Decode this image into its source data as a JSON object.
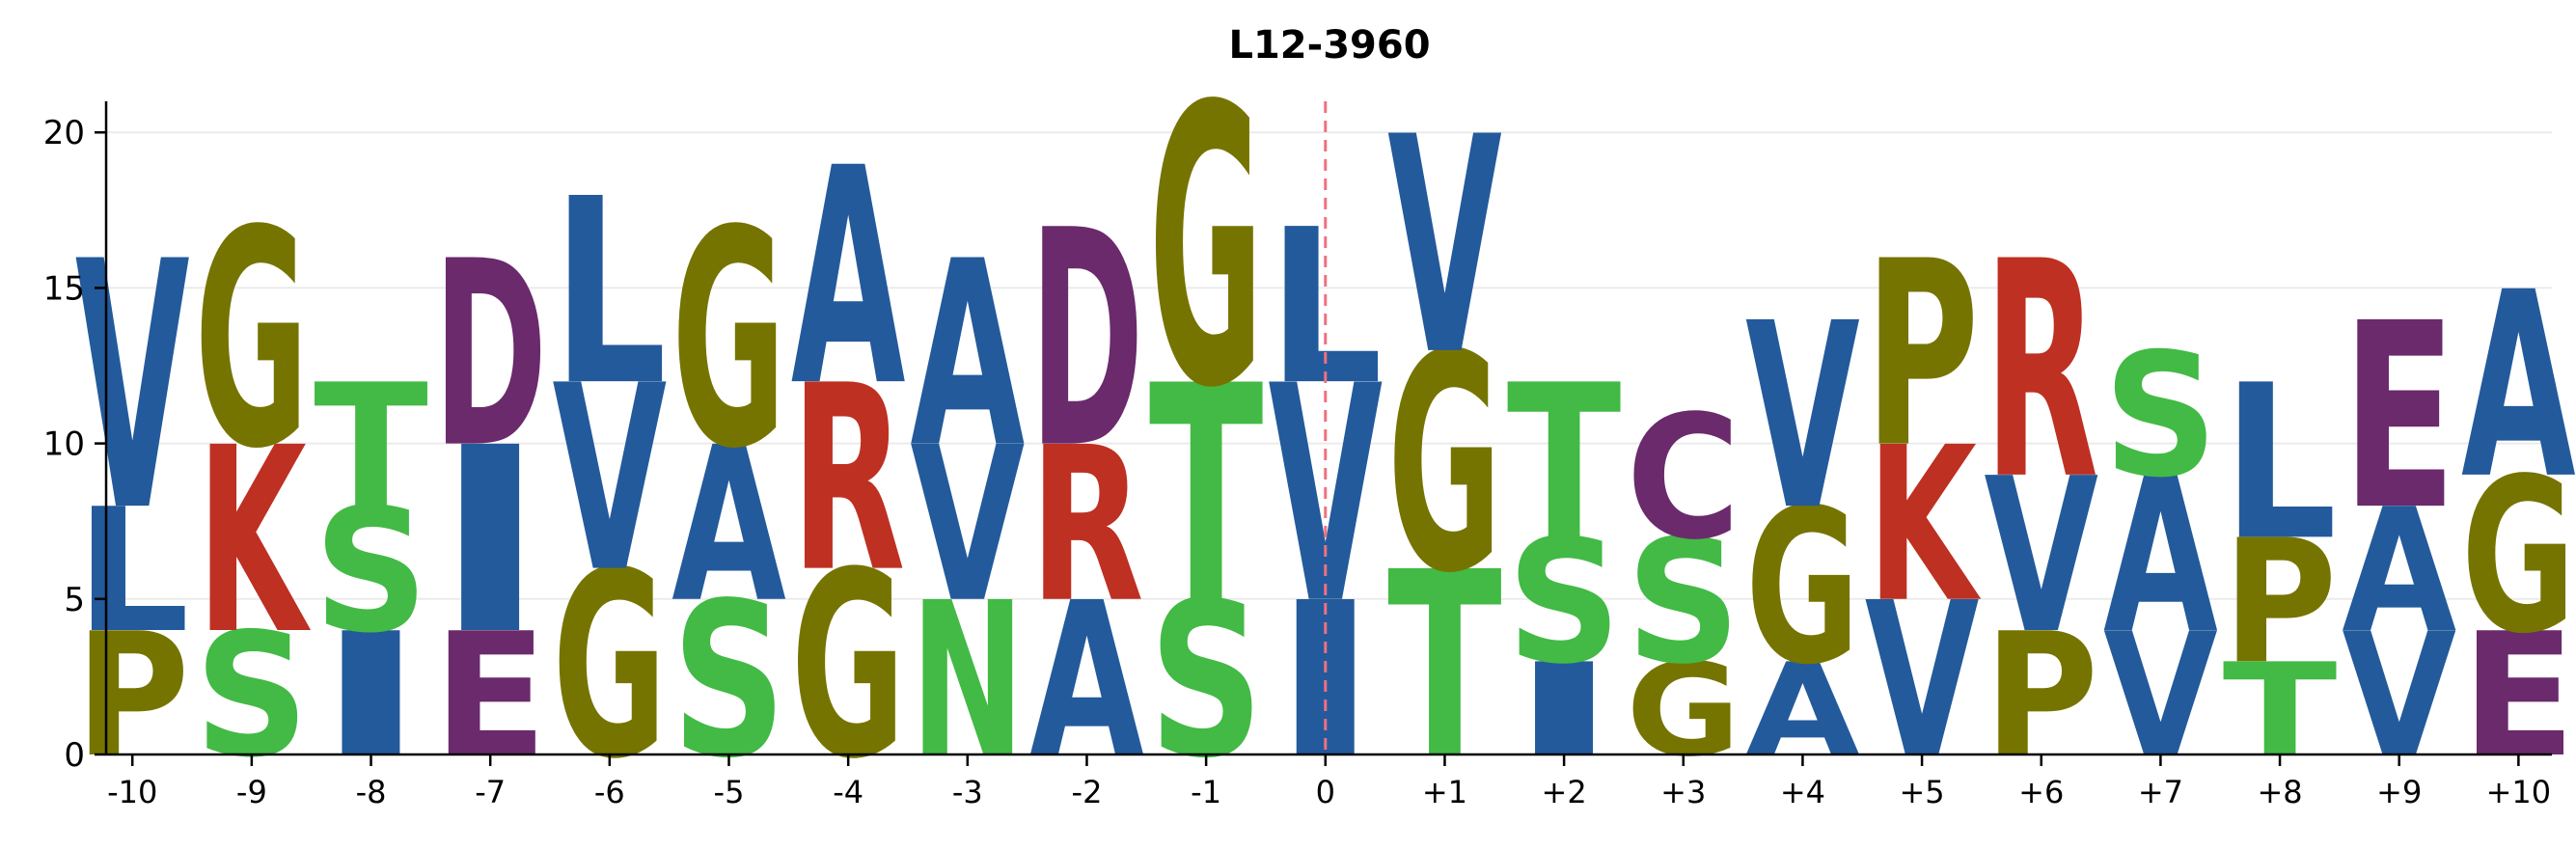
{
  "chart_data": {
    "type": "sequence-logo",
    "title": "L12-3960",
    "xlabel": "",
    "ylabel": "",
    "ylim": [
      0,
      21
    ],
    "yticks": [
      0,
      5,
      10,
      15,
      20
    ],
    "grid": true,
    "reference_line_at": "0",
    "colors": {
      "hydrophobic": "#235A9B",
      "polar": "#42BA45",
      "glycine_proline": "#767400",
      "basic": "#BE3022",
      "acidic": "#6A2A6C",
      "reference_line": "#F07080",
      "grid": "#ebebeb",
      "axis": "#000000"
    },
    "positions": [
      {
        "label": "-10",
        "stack": [
          {
            "letter": "P",
            "value": 4,
            "color": "#767400"
          },
          {
            "letter": "L",
            "value": 4,
            "color": "#235A9B"
          },
          {
            "letter": "V",
            "value": 8,
            "color": "#235A9B"
          }
        ]
      },
      {
        "label": "-9",
        "stack": [
          {
            "letter": "S",
            "value": 4,
            "color": "#42BA45"
          },
          {
            "letter": "K",
            "value": 6,
            "color": "#BE3022"
          },
          {
            "letter": "G",
            "value": 7,
            "color": "#767400"
          }
        ]
      },
      {
        "label": "-8",
        "stack": [
          {
            "letter": "I",
            "value": 4,
            "color": "#235A9B"
          },
          {
            "letter": "S",
            "value": 4,
            "color": "#42BA45"
          },
          {
            "letter": "T",
            "value": 4,
            "color": "#42BA45"
          }
        ]
      },
      {
        "label": "-7",
        "stack": [
          {
            "letter": "E",
            "value": 4,
            "color": "#6A2A6C"
          },
          {
            "letter": "I",
            "value": 6,
            "color": "#235A9B"
          },
          {
            "letter": "D",
            "value": 6,
            "color": "#6A2A6C"
          }
        ]
      },
      {
        "label": "-6",
        "stack": [
          {
            "letter": "G",
            "value": 6,
            "color": "#767400"
          },
          {
            "letter": "V",
            "value": 6,
            "color": "#235A9B"
          },
          {
            "letter": "L",
            "value": 6,
            "color": "#235A9B"
          }
        ]
      },
      {
        "label": "-5",
        "stack": [
          {
            "letter": "S",
            "value": 5,
            "color": "#42BA45"
          },
          {
            "letter": "A",
            "value": 5,
            "color": "#235A9B"
          },
          {
            "letter": "G",
            "value": 7,
            "color": "#767400"
          }
        ]
      },
      {
        "label": "-4",
        "stack": [
          {
            "letter": "G",
            "value": 6,
            "color": "#767400"
          },
          {
            "letter": "R",
            "value": 6,
            "color": "#BE3022"
          },
          {
            "letter": "A",
            "value": 7,
            "color": "#235A9B"
          }
        ]
      },
      {
        "label": "-3",
        "stack": [
          {
            "letter": "N",
            "value": 5,
            "color": "#42BA45"
          },
          {
            "letter": "V",
            "value": 5,
            "color": "#235A9B"
          },
          {
            "letter": "A",
            "value": 6,
            "color": "#235A9B"
          }
        ]
      },
      {
        "label": "-2",
        "stack": [
          {
            "letter": "A",
            "value": 5,
            "color": "#235A9B"
          },
          {
            "letter": "R",
            "value": 5,
            "color": "#BE3022"
          },
          {
            "letter": "D",
            "value": 7,
            "color": "#6A2A6C"
          }
        ]
      },
      {
        "label": "-1",
        "stack": [
          {
            "letter": "S",
            "value": 5,
            "color": "#42BA45"
          },
          {
            "letter": "T",
            "value": 7,
            "color": "#42BA45"
          },
          {
            "letter": "G",
            "value": 9,
            "color": "#767400"
          }
        ]
      },
      {
        "label": "0",
        "stack": [
          {
            "letter": "I",
            "value": 5,
            "color": "#235A9B"
          },
          {
            "letter": "V",
            "value": 7,
            "color": "#235A9B"
          },
          {
            "letter": "L",
            "value": 5,
            "color": "#235A9B"
          }
        ]
      },
      {
        "label": "+1",
        "stack": [
          {
            "letter": "T",
            "value": 6,
            "color": "#42BA45"
          },
          {
            "letter": "G",
            "value": 7,
            "color": "#767400"
          },
          {
            "letter": "V",
            "value": 7,
            "color": "#235A9B"
          }
        ]
      },
      {
        "label": "+2",
        "stack": [
          {
            "letter": "I",
            "value": 3,
            "color": "#235A9B"
          },
          {
            "letter": "S",
            "value": 4,
            "color": "#42BA45"
          },
          {
            "letter": "T",
            "value": 5,
            "color": "#42BA45"
          }
        ]
      },
      {
        "label": "+3",
        "stack": [
          {
            "letter": "G",
            "value": 3,
            "color": "#767400"
          },
          {
            "letter": "S",
            "value": 4,
            "color": "#42BA45"
          },
          {
            "letter": "C",
            "value": 4,
            "color": "#6A2A6C"
          }
        ]
      },
      {
        "label": "+4",
        "stack": [
          {
            "letter": "A",
            "value": 3,
            "color": "#235A9B"
          },
          {
            "letter": "G",
            "value": 5,
            "color": "#767400"
          },
          {
            "letter": "V",
            "value": 6,
            "color": "#235A9B"
          }
        ]
      },
      {
        "label": "+5",
        "stack": [
          {
            "letter": "V",
            "value": 5,
            "color": "#235A9B"
          },
          {
            "letter": "K",
            "value": 5,
            "color": "#BE3022"
          },
          {
            "letter": "P",
            "value": 6,
            "color": "#767400"
          }
        ]
      },
      {
        "label": "+6",
        "stack": [
          {
            "letter": "P",
            "value": 4,
            "color": "#767400"
          },
          {
            "letter": "V",
            "value": 5,
            "color": "#235A9B"
          },
          {
            "letter": "R",
            "value": 7,
            "color": "#BE3022"
          }
        ]
      },
      {
        "label": "+7",
        "stack": [
          {
            "letter": "V",
            "value": 4,
            "color": "#235A9B"
          },
          {
            "letter": "A",
            "value": 5,
            "color": "#235A9B"
          },
          {
            "letter": "S",
            "value": 4,
            "color": "#42BA45"
          }
        ]
      },
      {
        "label": "+8",
        "stack": [
          {
            "letter": "T",
            "value": 3,
            "color": "#42BA45"
          },
          {
            "letter": "P",
            "value": 4,
            "color": "#767400"
          },
          {
            "letter": "L",
            "value": 5,
            "color": "#235A9B"
          }
        ]
      },
      {
        "label": "+9",
        "stack": [
          {
            "letter": "V",
            "value": 4,
            "color": "#235A9B"
          },
          {
            "letter": "A",
            "value": 4,
            "color": "#235A9B"
          },
          {
            "letter": "E",
            "value": 6,
            "color": "#6A2A6C"
          }
        ]
      },
      {
        "label": "+10",
        "stack": [
          {
            "letter": "E",
            "value": 4,
            "color": "#6A2A6C"
          },
          {
            "letter": "G",
            "value": 5,
            "color": "#767400"
          },
          {
            "letter": "A",
            "value": 6,
            "color": "#235A9B"
          }
        ]
      }
    ]
  }
}
